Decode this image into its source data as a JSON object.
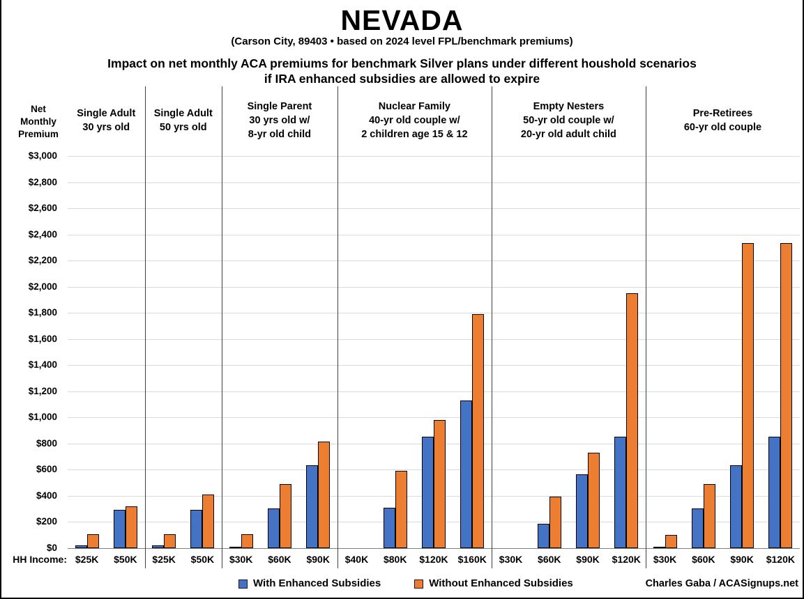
{
  "page": {
    "title": "NEVADA",
    "subtitle": "(Carson City, 89403 • based on 2024 level FPL/benchmark premiums)",
    "heading_line1": "Impact on net monthly ACA premiums for benchmark Silver plans under different houshold scenarios",
    "heading_line2": "if IRA enhanced subsidies are allowed to expire",
    "credit": "Charles Gaba / ACASignups.net"
  },
  "axis": {
    "y_label": "Net\nMonthly\nPremium",
    "x_label": "HH Income:"
  },
  "legend": {
    "with": "With Enhanced Subsidies",
    "without": "Without Enhanced Subsidies"
  },
  "colors": {
    "with_subsidies": "#4472C4",
    "without_subsidies": "#ED7D31",
    "gridline": "#D9D9D9",
    "axis_line": "#7F7F7F",
    "divider": "#404040"
  },
  "chart_data": {
    "type": "bar",
    "title": "Impact on net monthly ACA premiums for benchmark Silver plans under different houshold scenarios if IRA enhanced subsidies are allowed to expire",
    "ylabel": "Net Monthly Premium",
    "xlabel": "HH Income",
    "ylim": [
      0,
      3000
    ],
    "ytick_step": 200,
    "ytick_prefix": "$",
    "grid": true,
    "legend_position": "bottom",
    "series_names": [
      "With Enhanced Subsidies",
      "Without Enhanced Subsidies"
    ],
    "groups": [
      {
        "label": "Single Adult\n30 yrs old",
        "incomes": [
          "$25K",
          "$50K"
        ],
        "with_enhanced": [
          20,
          295
        ],
        "without_enhanced": [
          105,
          320
        ]
      },
      {
        "label": "Single Adult\n50 yrs old",
        "incomes": [
          "$25K",
          "$50K"
        ],
        "with_enhanced": [
          20,
          295
        ],
        "without_enhanced": [
          105,
          410
        ]
      },
      {
        "label": "Single Parent\n30 yrs old w/\n8-yr old child",
        "incomes": [
          "$30K",
          "$60K",
          "$90K"
        ],
        "with_enhanced": [
          5,
          305,
          635
        ],
        "without_enhanced": [
          105,
          490,
          815
        ]
      },
      {
        "label": "Nuclear Family\n40-yr old couple w/\n2 children age 15 & 12",
        "incomes": [
          "$40K",
          "$80K",
          "$120K",
          "$160K"
        ],
        "with_enhanced": [
          0,
          310,
          850,
          1130
        ],
        "without_enhanced": [
          0,
          590,
          980,
          1790
        ]
      },
      {
        "label": "Empty Nesters\n50-yr old couple w/\n20-yr old adult child",
        "incomes": [
          "$30K",
          "$60K",
          "$90K",
          "$120K"
        ],
        "with_enhanced": [
          0,
          185,
          565,
          850
        ],
        "without_enhanced": [
          0,
          395,
          730,
          1950
        ]
      },
      {
        "label": "Pre-Retirees\n60-yr old couple",
        "incomes": [
          "$30K",
          "$60K",
          "$90K",
          "$120K"
        ],
        "with_enhanced": [
          5,
          305,
          635,
          850
        ],
        "without_enhanced": [
          100,
          490,
          2335,
          2335
        ]
      }
    ]
  }
}
